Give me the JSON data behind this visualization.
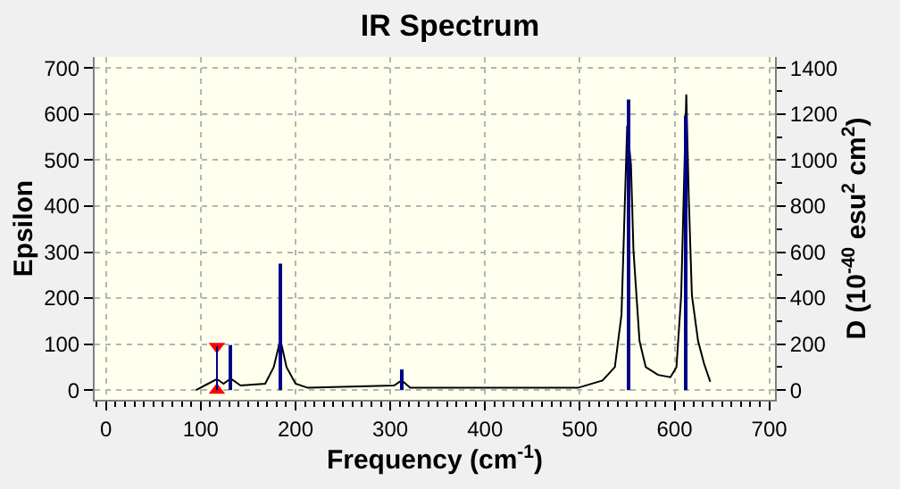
{
  "chart_data": {
    "type": "line",
    "title": "IR Spectrum",
    "xlabel": "Frequency (cm$^{-1}$)",
    "ylabel": "Epsilon",
    "y2label": "D (10$^{-40}$ esu$^{2}$ cm$^{2}$)",
    "xlim": [
      -12,
      706
    ],
    "xticks": [
      0,
      100,
      200,
      300,
      400,
      500,
      600,
      700
    ],
    "ylim": [
      -21,
      724
    ],
    "yticks": [
      0,
      100,
      200,
      300,
      400,
      500,
      600,
      700
    ],
    "y2lim": [
      -42,
      1448
    ],
    "y2ticks": [
      0,
      200,
      400,
      600,
      800,
      1000,
      1200,
      1400
    ],
    "grid": true,
    "series": [
      {
        "color": "#000000",
        "x": [
          95,
          106,
          117,
          124,
          131.6,
          142,
          168,
          177,
          184,
          190.5,
          200,
          213,
          304,
          312,
          321,
          498,
          524,
          537,
          544,
          550,
          554,
          556.6,
          563,
          569.6,
          582.6,
          595.6,
          602,
          607,
          610.5,
          612.4,
          615,
          618.3,
          624.8,
          631.2,
          637.7
        ],
        "values": [
          0,
          12,
          24,
          14,
          25,
          10,
          14,
          50,
          110,
          50,
          14,
          5,
          10,
          21,
          5,
          5,
          21,
          50,
          164,
          575,
          490,
          305,
          107,
          50,
          33,
          28,
          50,
          206,
          490,
          643,
          419,
          206,
          107,
          57,
          18
        ]
      },
      {
        "type": "bar",
        "axis": "y2",
        "color": "#00008b",
        "x": [
          117,
          131.6,
          184,
          312,
          551.5,
          612
        ],
        "values": [
          190,
          196,
          550,
          90,
          1264,
          1194
        ]
      },
      {
        "type": "scatter",
        "marker": "triangle",
        "color": "#ff0000",
        "x": [
          117,
          117
        ],
        "values": [
          0,
          95
        ]
      }
    ]
  }
}
